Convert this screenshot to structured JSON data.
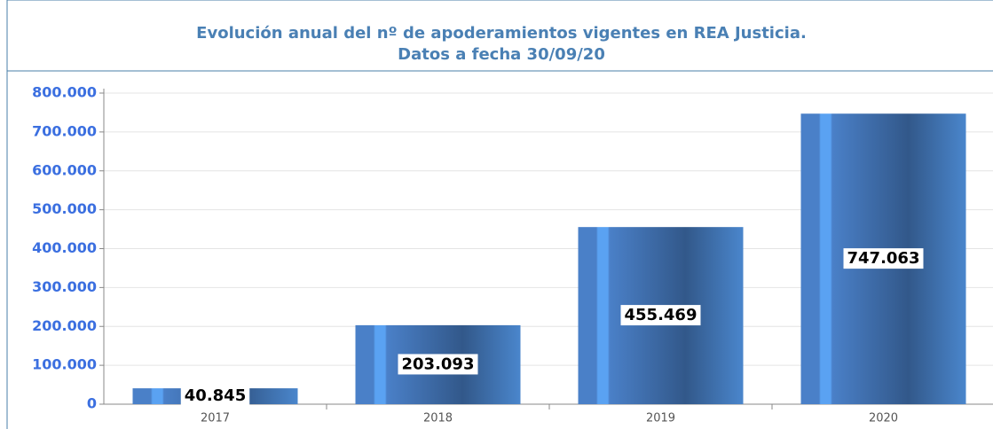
{
  "chart_data": {
    "type": "bar",
    "title": "Evolución anual del nº de apoderamientos vigentes en REA Justicia.",
    "subtitle": "Datos a fecha 30/09/20",
    "categories": [
      "2017",
      "2018",
      "2019",
      "2020"
    ],
    "values": [
      40845,
      203093,
      455469,
      747063
    ],
    "value_labels": [
      "40.845",
      "203.093",
      "455.469",
      "747.063"
    ],
    "color": "#4a7fc1",
    "ylim": [
      0,
      800000
    ],
    "yticks": [
      {
        "value": 0,
        "label": "0"
      },
      {
        "value": 100000,
        "label": "100.000"
      },
      {
        "value": 200000,
        "label": "200.000"
      },
      {
        "value": 300000,
        "label": "300.000"
      },
      {
        "value": 400000,
        "label": "400.000"
      },
      {
        "value": 500000,
        "label": "500.000"
      },
      {
        "value": 600000,
        "label": "600.000"
      },
      {
        "value": 700000,
        "label": "700.000"
      },
      {
        "value": 800000,
        "label": "800.000"
      }
    ],
    "grid": true
  }
}
